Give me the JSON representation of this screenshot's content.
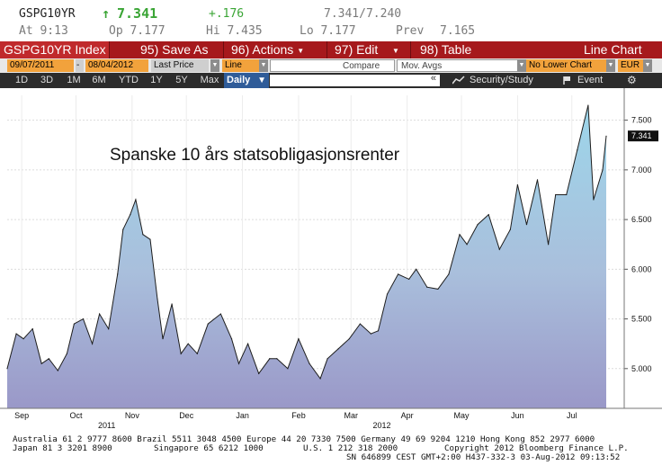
{
  "quote": {
    "ticker": "GSPG10YR",
    "arrow": "↑",
    "last": "7.341",
    "change": "+.176",
    "bid_ask": "7.341/7.240",
    "time_label": "At 9:13",
    "open_label": "Op 7.177",
    "high_label": "Hi 7.435",
    "low_label": "Lo 7.177",
    "prev_label": "Prev",
    "prev_value": "7.165"
  },
  "toolbar": {
    "index": "GSPG10YR Index",
    "save": "95) Save As",
    "actions": "96) Actions",
    "edit": "97) Edit",
    "table": "98) Table",
    "chart_type": "Line Chart"
  },
  "options": {
    "start_date": "09/07/2011",
    "dash": "-",
    "end_date": "08/04/2012",
    "field": "Last Price",
    "style": "Line",
    "compare": "Compare",
    "mov_avgs": "Mov. Avgs",
    "lower_chart": "No Lower Chart",
    "currency": "EUR"
  },
  "periods": {
    "items": [
      "1D",
      "3D",
      "1M",
      "6M",
      "YTD",
      "1Y",
      "5Y",
      "Max"
    ],
    "frequency": "Daily",
    "frequency_caret": "▼",
    "quote_mark": "«",
    "security_study": "Security/Study",
    "event": "Event",
    "settings": "⚙"
  },
  "chart_data": {
    "type": "area",
    "title": "Spanske 10 års statsobligasjonsrenter",
    "ylim": [
      4.6,
      7.75
    ],
    "y_ticks": [
      "5.000",
      "5.500",
      "6.000",
      "6.500",
      "7.000",
      "7.500"
    ],
    "last_label": "7.341",
    "x_months": [
      {
        "label": "Sep",
        "x": "2011-09-15"
      },
      {
        "label": "Oct",
        "x": "2011-10-15"
      },
      {
        "label": "Nov",
        "x": "2011-11-15"
      },
      {
        "label": "Dec",
        "x": "2011-12-15"
      },
      {
        "label": "Jan",
        "x": "2012-01-15"
      },
      {
        "label": "Feb",
        "x": "2012-02-15"
      },
      {
        "label": "Mar",
        "x": "2012-03-15"
      },
      {
        "label": "Apr",
        "x": "2012-04-15"
      },
      {
        "label": "May",
        "x": "2012-05-15"
      },
      {
        "label": "Jun",
        "x": "2012-06-15"
      },
      {
        "label": "Jul",
        "x": "2012-07-15"
      }
    ],
    "x_years": [
      {
        "label": "2011",
        "x": "2011-11-01"
      },
      {
        "label": "2012",
        "x": "2012-04-01"
      }
    ],
    "series": [
      {
        "x": [
          "2011-09-07",
          "2011-09-12",
          "2011-09-16",
          "2011-09-21",
          "2011-09-26",
          "2011-09-30",
          "2011-10-05",
          "2011-10-10",
          "2011-10-14",
          "2011-10-19",
          "2011-10-24",
          "2011-10-28",
          "2011-11-02",
          "2011-11-07",
          "2011-11-10",
          "2011-11-14",
          "2011-11-17",
          "2011-11-21",
          "2011-11-25",
          "2011-11-29",
          "2011-12-02",
          "2011-12-07",
          "2011-12-12",
          "2011-12-16",
          "2011-12-21",
          "2011-12-27",
          "2012-01-03",
          "2012-01-09",
          "2012-01-13",
          "2012-01-18",
          "2012-01-24",
          "2012-01-30",
          "2012-02-03",
          "2012-02-09",
          "2012-02-15",
          "2012-02-21",
          "2012-02-27",
          "2012-03-02",
          "2012-03-08",
          "2012-03-14",
          "2012-03-20",
          "2012-03-26",
          "2012-03-30",
          "2012-04-04",
          "2012-04-10",
          "2012-04-16",
          "2012-04-20",
          "2012-04-26",
          "2012-05-02",
          "2012-05-08",
          "2012-05-14",
          "2012-05-18",
          "2012-05-24",
          "2012-05-30",
          "2012-06-05",
          "2012-06-11",
          "2012-06-15",
          "2012-06-20",
          "2012-06-26",
          "2012-07-02",
          "2012-07-06",
          "2012-07-12",
          "2012-07-18",
          "2012-07-24",
          "2012-07-27",
          "2012-08-01",
          "2012-08-03"
        ],
        "y": [
          5.0,
          5.35,
          5.3,
          5.4,
          5.05,
          5.1,
          4.98,
          5.15,
          5.45,
          5.5,
          5.25,
          5.55,
          5.4,
          5.95,
          6.4,
          6.55,
          6.7,
          6.35,
          6.3,
          5.7,
          5.3,
          5.65,
          5.15,
          5.25,
          5.15,
          5.45,
          5.55,
          5.3,
          5.05,
          5.25,
          4.95,
          5.1,
          5.1,
          5.0,
          5.3,
          5.05,
          4.9,
          5.1,
          5.2,
          5.3,
          5.45,
          5.35,
          5.38,
          5.75,
          5.95,
          5.9,
          6.0,
          5.82,
          5.8,
          5.95,
          6.35,
          6.25,
          6.45,
          6.55,
          6.2,
          6.4,
          6.85,
          6.45,
          6.9,
          6.25,
          6.75,
          6.75,
          7.2,
          7.65,
          6.7,
          7.0,
          7.34
        ]
      }
    ]
  },
  "footer": {
    "line1": "Australia 61 2 9777 8600 Brazil 5511 3048 4500 Europe 44 20 7330 7500 Germany 49 69 9204 1210 Hong Kong 852 2977 6000",
    "line2a": "Japan 81 3 3201 8900",
    "line2b": "Singapore 65 6212 1000",
    "line2c": "U.S. 1 212 318 2000",
    "line2d": "Copyright 2012 Bloomberg Finance L.P.",
    "line3": "SN 646899 CEST GMT+2:00 H437-332-3 03-Aug-2012 09:13:52"
  },
  "colors": {
    "red_bar": "#a6191c",
    "orange_field": "#f2a23c",
    "daily_blue": "#2f5c99",
    "green_up": "#3aa535"
  }
}
